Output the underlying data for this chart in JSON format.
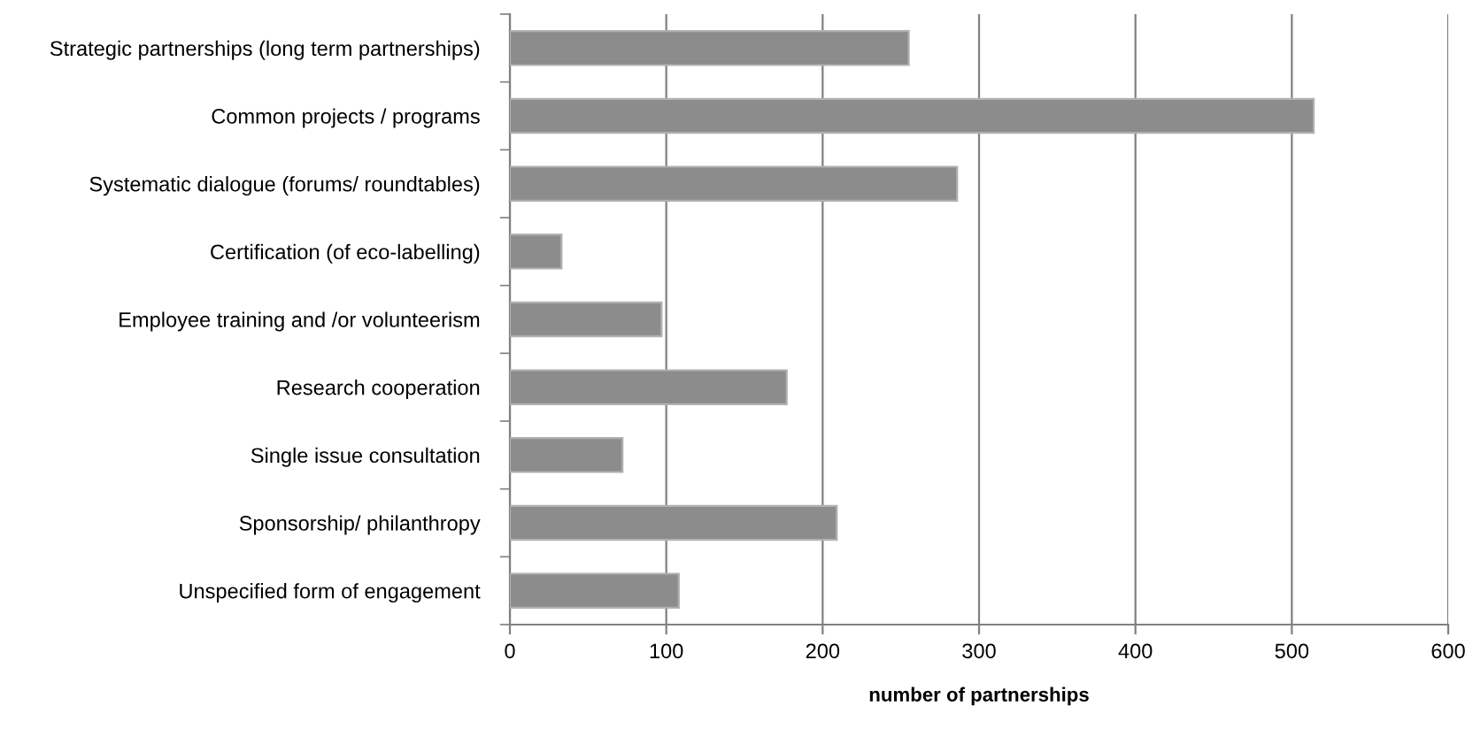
{
  "chart_data": {
    "type": "bar",
    "orientation": "horizontal",
    "xlabel": "number of partnerships",
    "categories": [
      "Strategic partnerships (long term partnerships)",
      "Common projects / programs",
      "Systematic dialogue (forums/ roundtables)",
      "Certification (of eco-labelling)",
      "Employee training and /or volunteerism",
      "Research cooperation",
      "Single issue consultation",
      "Sponsorship/ philanthropy",
      "Unspecified form of engagement"
    ],
    "values": [
      255,
      514,
      286,
      33,
      97,
      177,
      72,
      209,
      108
    ],
    "color": "#8c8c8c",
    "xlim": [
      0,
      600
    ],
    "xticks": [
      0,
      100,
      200,
      300,
      400,
      500,
      600
    ],
    "grid": "x",
    "legend": false
  }
}
